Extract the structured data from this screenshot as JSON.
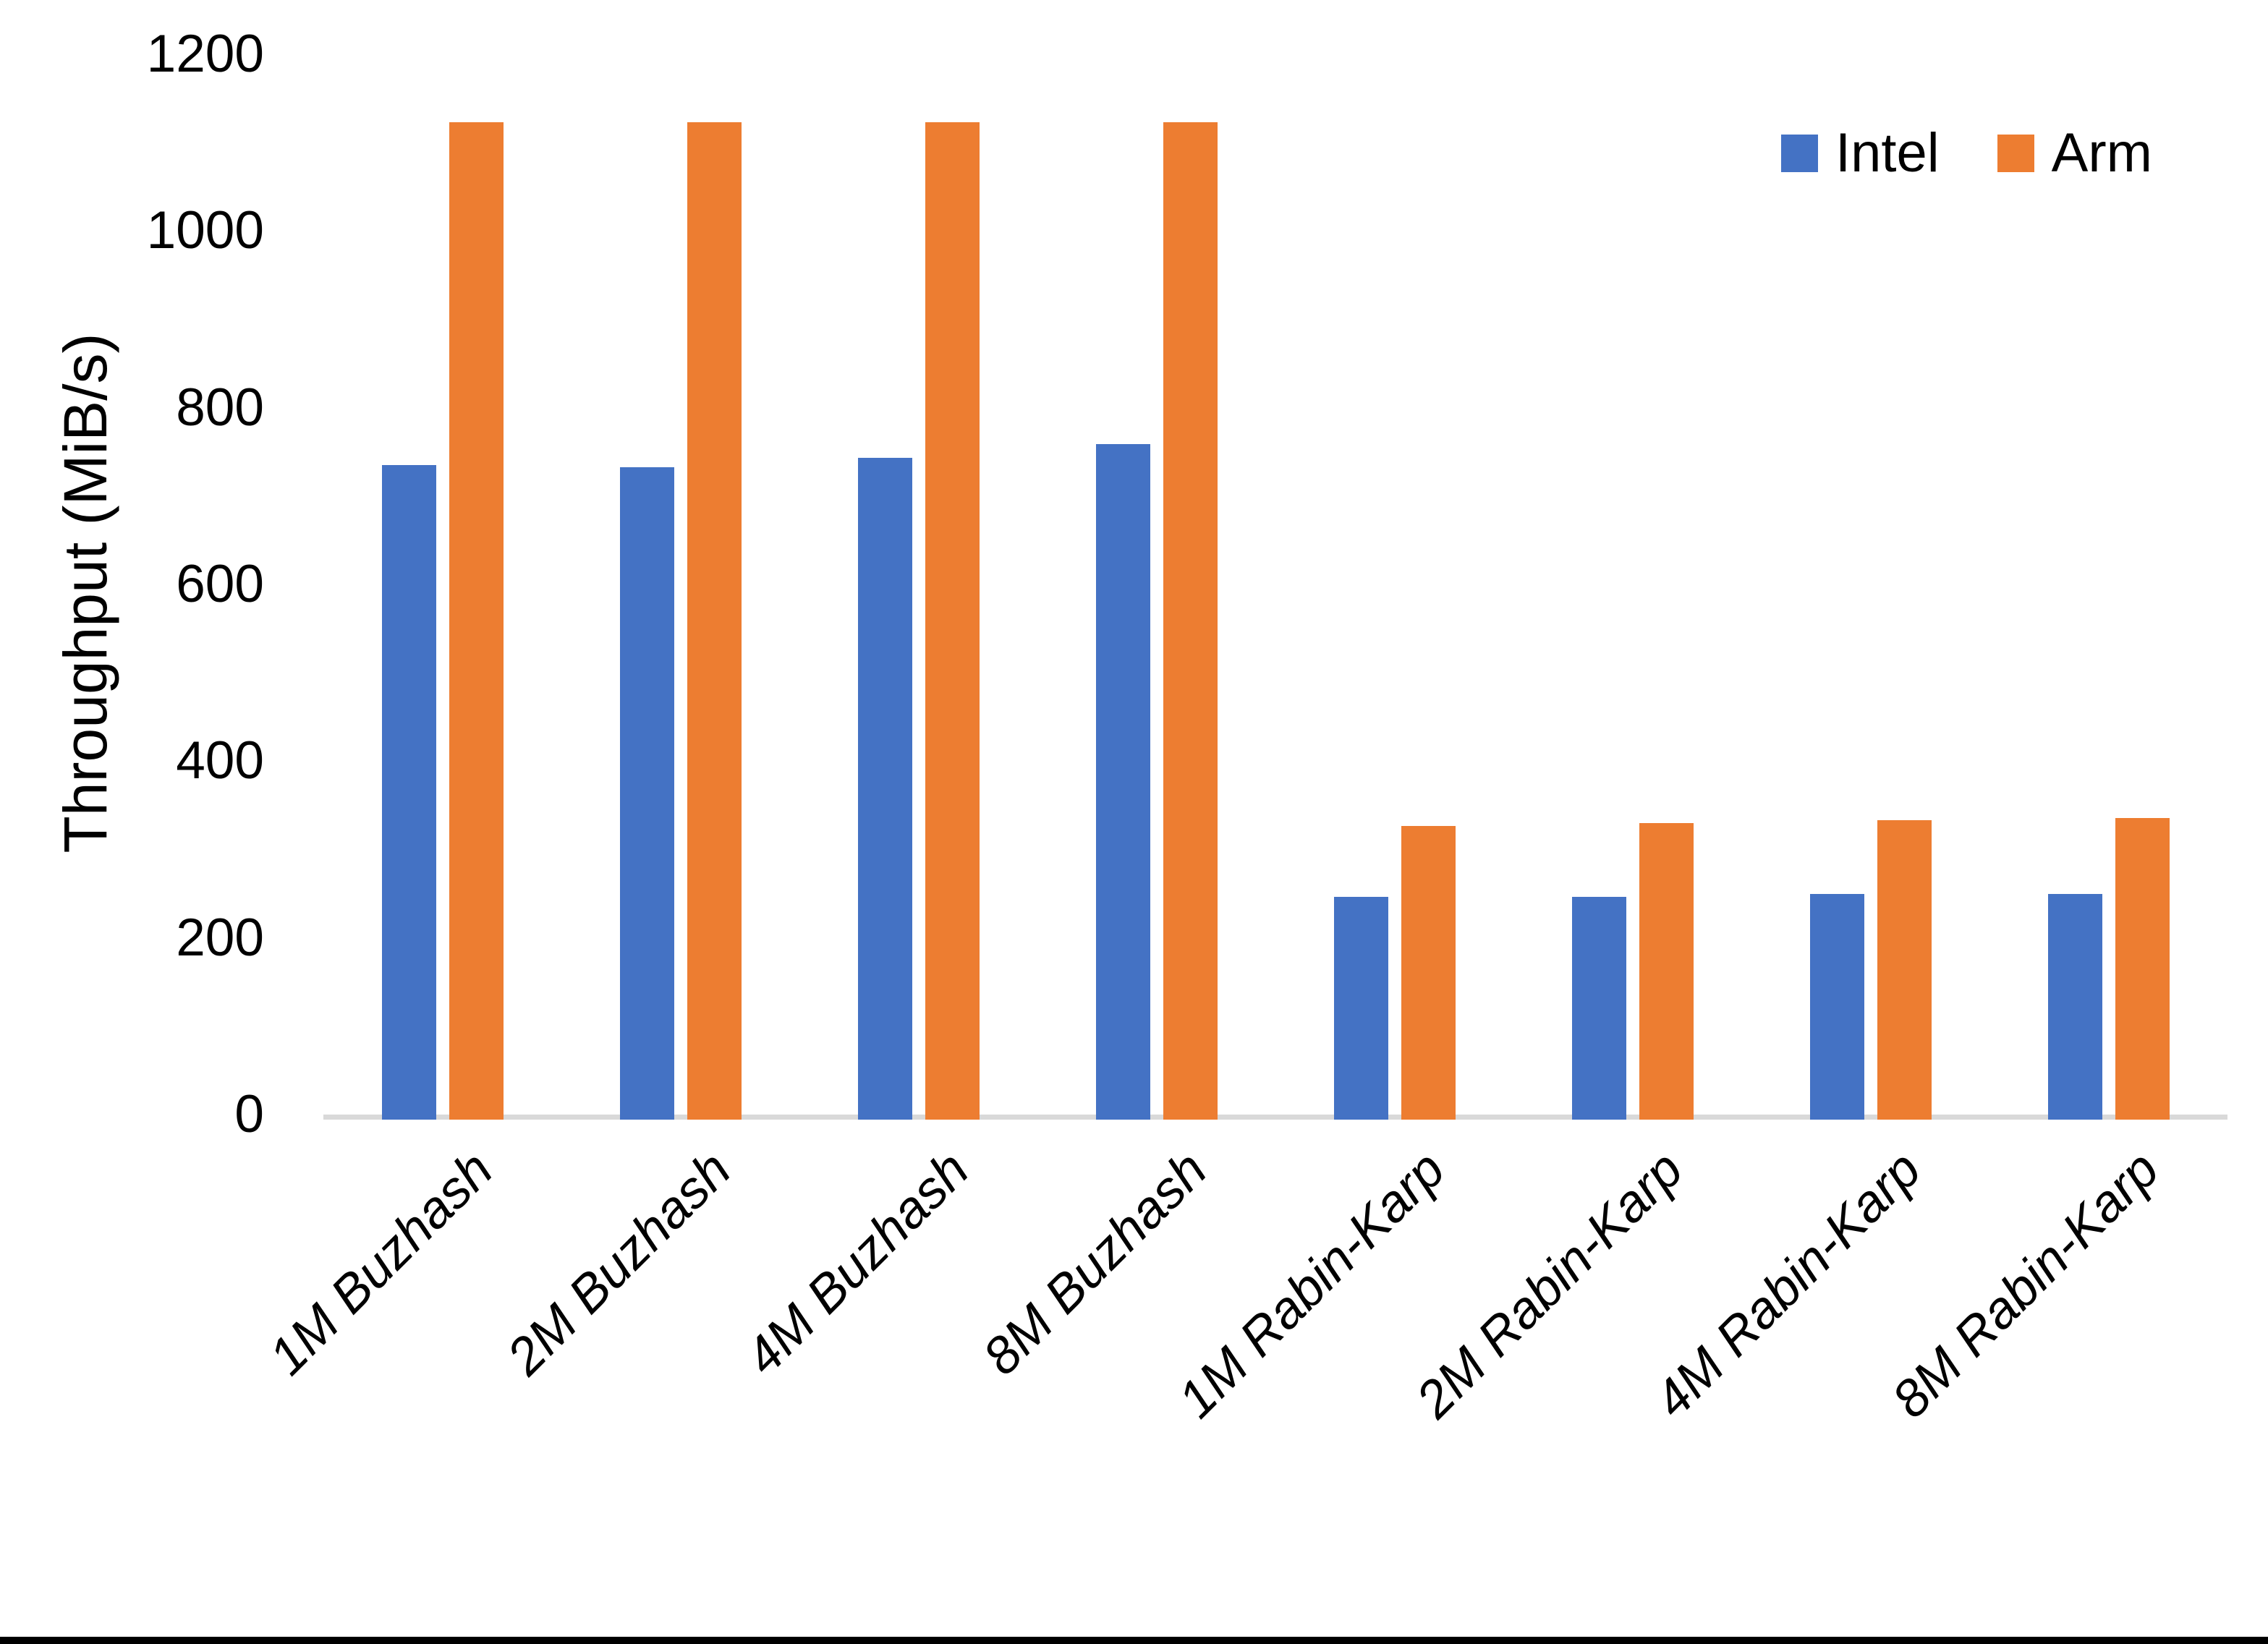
{
  "chart_data": {
    "type": "bar",
    "title": "",
    "xlabel": "",
    "ylabel": "Throughput (MiB/s)",
    "ylim": [
      0,
      1200
    ],
    "ytick_step": 200,
    "yticks": [
      1200,
      1000,
      800,
      600,
      400,
      200,
      0
    ],
    "grid": false,
    "legend_position": "top-right",
    "categories": [
      "1M Buzhash",
      "2M Buzhash",
      "4M Buzhash",
      "8M Buzhash",
      "1M Rabin-Karp",
      "2M Rabin-Karp",
      "4M Rabin-Karp",
      "8M Rabin-Karp"
    ],
    "series": [
      {
        "name": "Intel",
        "color": "#4472C4",
        "values": [
          735,
          733,
          743,
          759,
          246,
          246,
          250,
          250
        ]
      },
      {
        "name": "Arm",
        "color": "#ED7D31",
        "values": [
          1123,
          1123,
          1123,
          1123,
          327,
          330,
          333,
          336
        ]
      }
    ]
  },
  "colors": {
    "background": "#FFFFFF",
    "axis_line": "#D9D9D9",
    "text": "#000000",
    "bottom_border": "#000000"
  }
}
